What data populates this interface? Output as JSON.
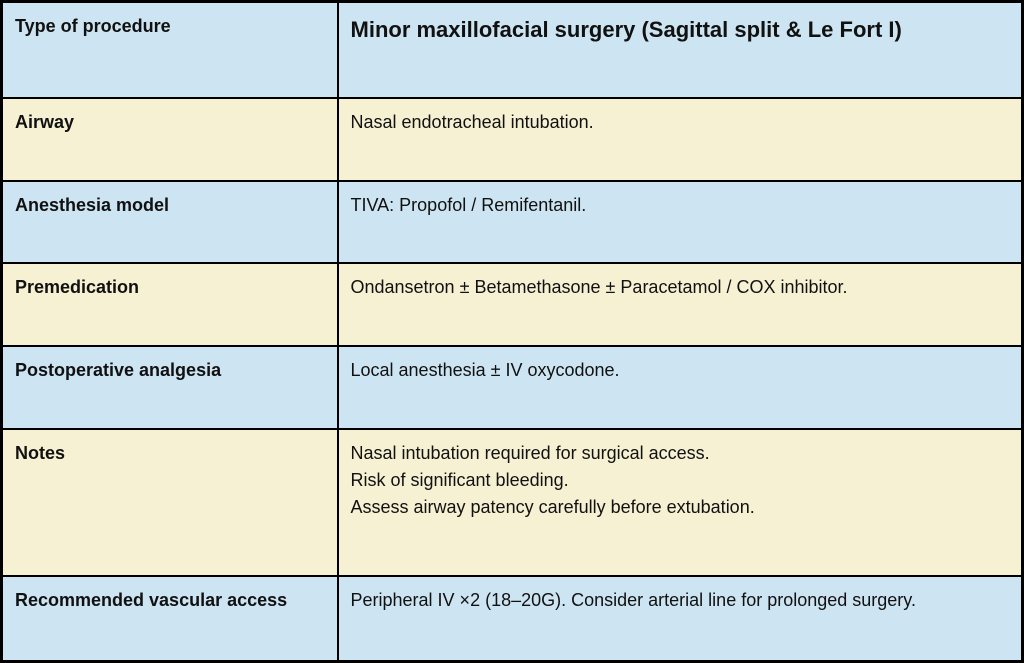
{
  "colors": {
    "row_blue": "#cde5f2",
    "row_cream": "#f6f1d3",
    "border": "#000000",
    "text": "#111111"
  },
  "table": {
    "rows": [
      {
        "label": "Type of procedure",
        "value": "Minor maxillofacial surgery (Sagittal split & Le Fort I)"
      },
      {
        "label": "Airway",
        "value": "Nasal endotracheal intubation."
      },
      {
        "label": "Anesthesia model",
        "value": "TIVA: Propofol / Remifentanil."
      },
      {
        "label": "Premedication",
        "value": "Ondansetron ± Betamethasone ± Paracetamol / COX inhibitor."
      },
      {
        "label": "Postoperative analgesia",
        "value": "Local anesthesia ± IV oxycodone."
      },
      {
        "label": "Notes",
        "value": [
          "Nasal intubation required for surgical access.",
          "Risk of significant bleeding.",
          "Assess airway patency carefully before extubation."
        ]
      },
      {
        "label": "Recommended vascular access",
        "value": "Peripheral IV ×2 (18–20G). Consider arterial line for prolonged surgery."
      }
    ]
  }
}
